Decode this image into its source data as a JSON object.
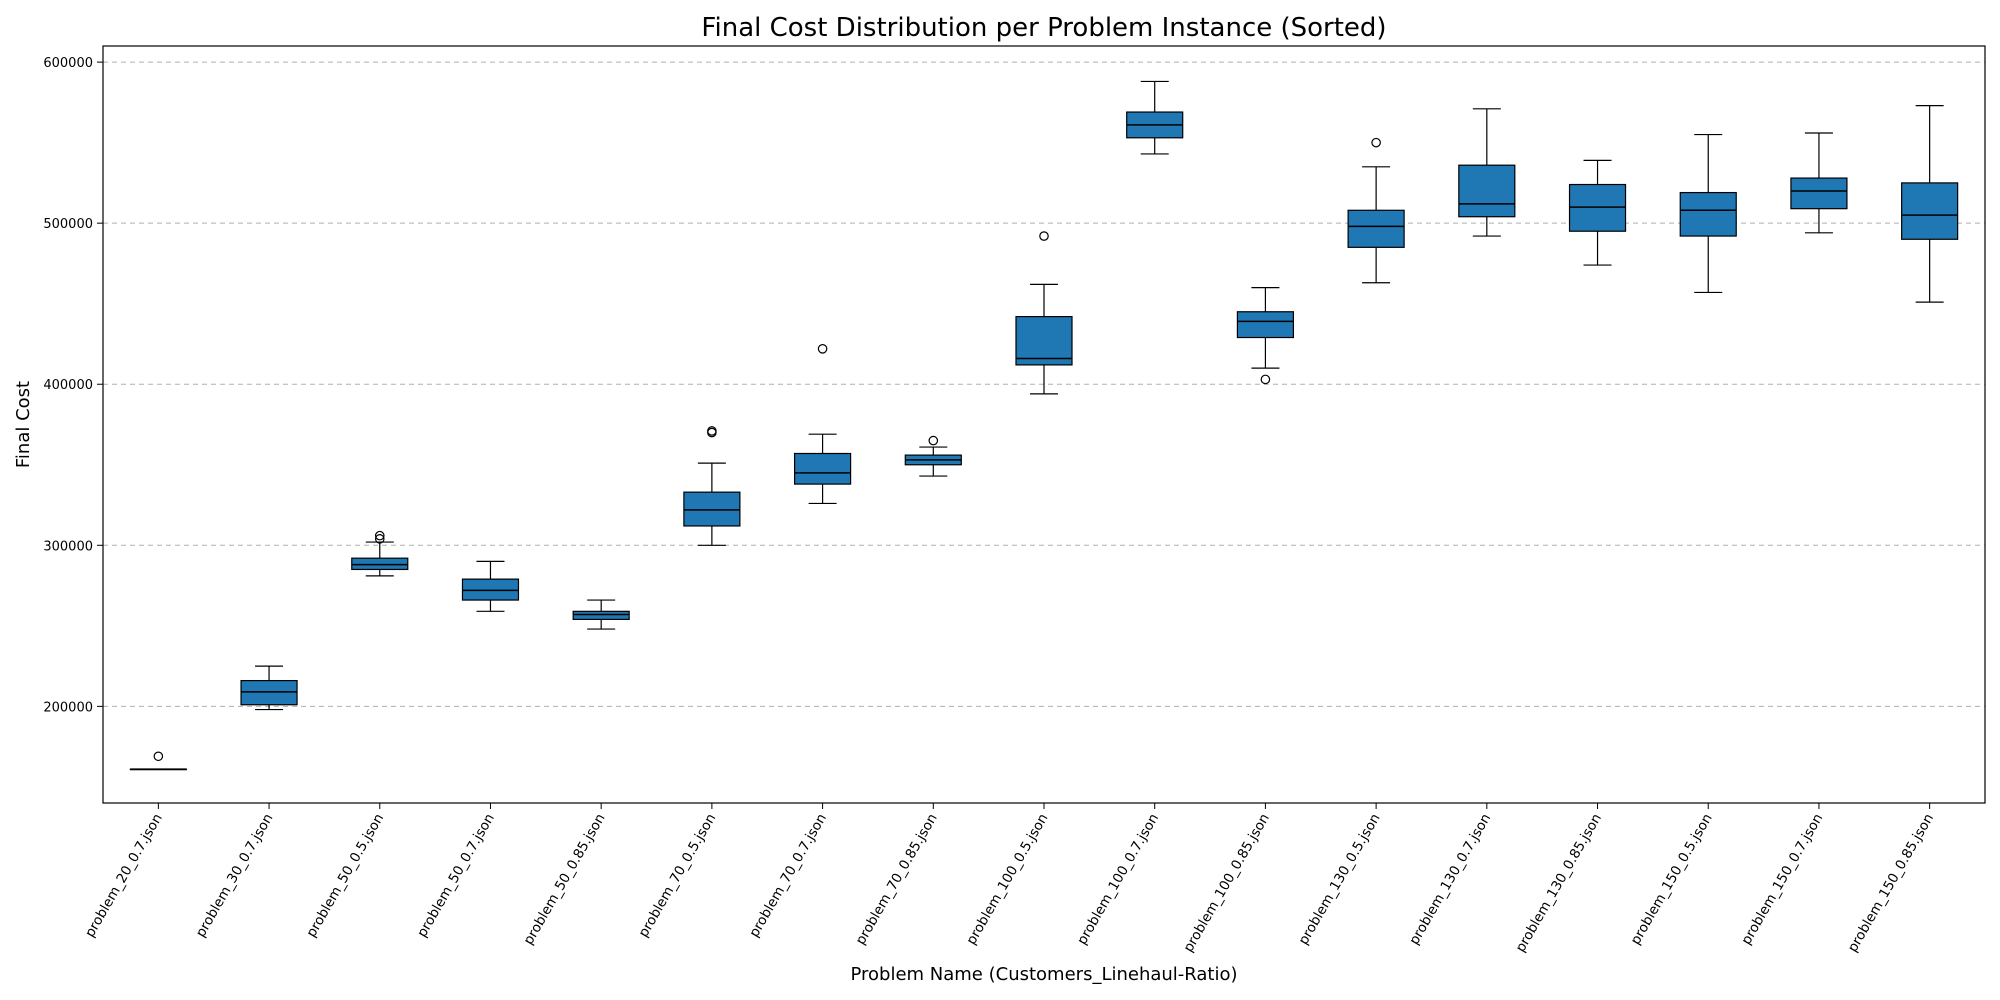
{
  "chart_data": {
    "type": "box",
    "title": "Final Cost Distribution per Problem Instance (Sorted)",
    "xlabel": "Problem Name (Customers_Linehaul-Ratio)",
    "ylabel": "Final Cost",
    "ylim": [
      140000,
      610000
    ],
    "yticks": [
      200000,
      300000,
      400000,
      500000,
      600000
    ],
    "grid": "y",
    "box_color": "#1f77b4",
    "categories": [
      "problem_20_0.7.json",
      "problem_30_0.7.json",
      "problem_50_0.5.json",
      "problem_50_0.7.json",
      "problem_50_0.85.json",
      "problem_70_0.5.json",
      "problem_70_0.7.json",
      "problem_70_0.85.json",
      "problem_100_0.5.json",
      "problem_100_0.7.json",
      "problem_100_0.85.json",
      "problem_130_0.5.json",
      "problem_130_0.7.json",
      "problem_130_0.85.json",
      "problem_150_0.5.json",
      "problem_150_0.7.json",
      "problem_150_0.85.json"
    ],
    "boxes": [
      {
        "whislo": 161000,
        "q1": 161000,
        "median": 161000,
        "q3": 161000,
        "whishi": 161000,
        "fliers": [
          169000
        ]
      },
      {
        "whislo": 198000,
        "q1": 201000,
        "median": 209000,
        "q3": 216000,
        "whishi": 225000,
        "fliers": []
      },
      {
        "whislo": 281000,
        "q1": 285000,
        "median": 288000,
        "q3": 292000,
        "whishi": 302000,
        "fliers": [
          304000,
          306000
        ]
      },
      {
        "whislo": 259000,
        "q1": 266000,
        "median": 272000,
        "q3": 279000,
        "whishi": 290000,
        "fliers": []
      },
      {
        "whislo": 248000,
        "q1": 254000,
        "median": 257000,
        "q3": 259000,
        "whishi": 266000,
        "fliers": []
      },
      {
        "whislo": 300000,
        "q1": 312000,
        "median": 322000,
        "q3": 333000,
        "whishi": 351000,
        "fliers": [
          370000,
          371000
        ]
      },
      {
        "whislo": 326000,
        "q1": 338000,
        "median": 345000,
        "q3": 357000,
        "whishi": 369000,
        "fliers": [
          422000
        ]
      },
      {
        "whislo": 343000,
        "q1": 350000,
        "median": 353000,
        "q3": 356000,
        "whishi": 361000,
        "fliers": [
          365000
        ]
      },
      {
        "whislo": 394000,
        "q1": 412000,
        "median": 416000,
        "q3": 442000,
        "whishi": 462000,
        "fliers": [
          492000
        ]
      },
      {
        "whislo": 543000,
        "q1": 553000,
        "median": 561000,
        "q3": 569000,
        "whishi": 588000,
        "fliers": []
      },
      {
        "whislo": 410000,
        "q1": 429000,
        "median": 439000,
        "q3": 445000,
        "whishi": 460000,
        "fliers": [
          403000
        ]
      },
      {
        "whislo": 463000,
        "q1": 485000,
        "median": 498000,
        "q3": 508000,
        "whishi": 535000,
        "fliers": [
          550000
        ]
      },
      {
        "whislo": 492000,
        "q1": 504000,
        "median": 512000,
        "q3": 536000,
        "whishi": 571000,
        "fliers": []
      },
      {
        "whislo": 474000,
        "q1": 495000,
        "median": 510000,
        "q3": 524000,
        "whishi": 539000,
        "fliers": []
      },
      {
        "whislo": 457000,
        "q1": 492000,
        "median": 508000,
        "q3": 519000,
        "whishi": 555000,
        "fliers": []
      },
      {
        "whislo": 494000,
        "q1": 509000,
        "median": 520000,
        "q3": 528000,
        "whishi": 556000,
        "fliers": []
      },
      {
        "whislo": 451000,
        "q1": 490000,
        "median": 505000,
        "q3": 525000,
        "whishi": 573000,
        "fliers": []
      }
    ]
  }
}
